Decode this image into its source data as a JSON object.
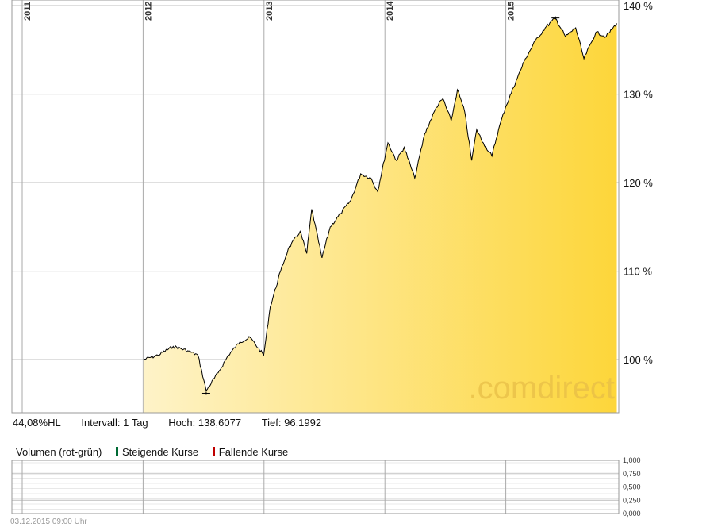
{
  "chart_data": [
    {
      "type": "area",
      "title": "",
      "xlabel": "",
      "ylabel": "",
      "x_ticks": [
        "2011",
        "2012",
        "2013",
        "2014",
        "2015"
      ],
      "y_ticks": [
        "140 %",
        "130 %",
        "120 %",
        "110 %",
        "100 %"
      ],
      "ylim": [
        94,
        140
      ],
      "grid": true,
      "watermark": ".comdirect",
      "colors": {
        "fill_light": "#fef3c8",
        "fill_dark": "#fdd63a",
        "line": "#000000",
        "grid": "#aaaaaa"
      },
      "x": [
        "2012-01-02",
        "2012-02-15",
        "2012-04-01",
        "2012-05-15",
        "2012-06-15",
        "2012-07-10",
        "2012-08-15",
        "2012-09-15",
        "2012-10-20",
        "2012-11-20",
        "2012-12-31",
        "2013-01-20",
        "2013-02-20",
        "2013-03-15",
        "2013-04-20",
        "2013-05-10",
        "2013-05-25",
        "2013-06-25",
        "2013-07-20",
        "2013-08-20",
        "2013-09-20",
        "2013-10-20",
        "2013-11-20",
        "2013-12-10",
        "2014-01-10",
        "2014-02-05",
        "2014-02-28",
        "2014-04-01",
        "2014-05-01",
        "2014-06-05",
        "2014-06-25",
        "2014-07-20",
        "2014-08-08",
        "2014-08-30",
        "2014-09-20",
        "2014-10-05",
        "2014-10-25",
        "2014-11-20",
        "2014-12-10",
        "2014-12-31",
        "2015-02-01",
        "2015-03-01",
        "2015-03-31",
        "2015-04-30",
        "2015-05-31",
        "2015-06-30",
        "2015-07-31",
        "2015-08-25",
        "2015-09-30",
        "2015-10-31",
        "2015-12-02"
      ],
      "series": [
        {
          "values": [
            100,
            100.5,
            101.5,
            101,
            100.5,
            96.5,
            98.5,
            100.5,
            102,
            102.5,
            100.5,
            106,
            110,
            112.5,
            114.5,
            112,
            117,
            111.5,
            115,
            116.5,
            118,
            121,
            120.5,
            119,
            124.5,
            122.5,
            124,
            120.5,
            125.5,
            128.5,
            129.5,
            127,
            130.5,
            128,
            122.5,
            126,
            124.5,
            123,
            126,
            128.5,
            131.5,
            134,
            136,
            137.5,
            138.6,
            136.5,
            137.5,
            134,
            137,
            136.5,
            138
          ]
        }
      ],
      "annotations": {
        "high_marker": 138.6077,
        "low_marker": 96.1992
      }
    },
    {
      "type": "bar",
      "title": "Volumen (rot-grün)",
      "legend": [
        "Steigende Kurse",
        "Fallende Kurse"
      ],
      "legend_colors": [
        "#006a34",
        "#c00000"
      ],
      "y_ticks": [
        "1,000",
        "0,750",
        "0,500",
        "0,250",
        "0,000"
      ],
      "ylim": [
        0,
        1
      ],
      "series": []
    }
  ],
  "stats": {
    "perf": "44,08%HL",
    "interval": "Intervall: 1 Tag",
    "high": "Hoch: 138,6077",
    "low": "Tief: 96,1992"
  },
  "volume": {
    "title": "Volumen (rot-grün)",
    "rising": "Steigende Kurse",
    "falling": "Fallende Kurse"
  },
  "footer": {
    "timestamp": "03.12.2015 09:00 Uhr"
  }
}
